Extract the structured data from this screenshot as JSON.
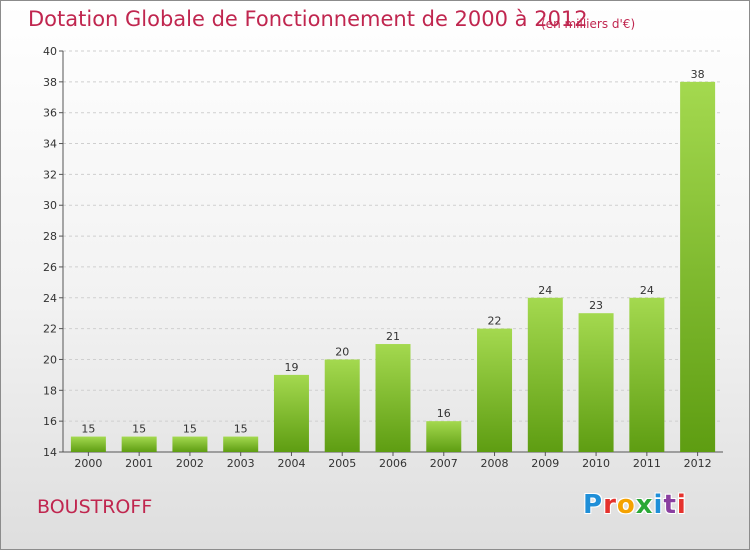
{
  "header": {
    "title": "Dotation Globale de Fonctionnement de 2000 à 2012",
    "subtitle": "(en milliers d'€)"
  },
  "footer": {
    "place": "BOUSTROFF",
    "logo": "Proxiti",
    "logo_colors": [
      "#1f8fd8",
      "#e5322d",
      "#f5a200",
      "#2aa836",
      "#1f8fd8",
      "#8a3fa0",
      "#e5322d"
    ]
  },
  "colors": {
    "title": "#c0264f",
    "bar_light": "#a4d94f",
    "bar_dark": "#5e9d12",
    "axis": "#555555",
    "grid": "#cfcfcf"
  },
  "chart_data": {
    "type": "bar",
    "title": "Dotation Globale de Fonctionnement de 2000 à 2012",
    "subtitle": "(en milliers d'€)",
    "categories": [
      "2000",
      "2001",
      "2002",
      "2003",
      "2004",
      "2005",
      "2006",
      "2007",
      "2008",
      "2009",
      "2010",
      "2011",
      "2012"
    ],
    "values": [
      15,
      15,
      15,
      15,
      19,
      20,
      21,
      16,
      22,
      24,
      23,
      24,
      38
    ],
    "data_labels": [
      "15",
      "15",
      "15",
      "15",
      "19",
      "20",
      "21",
      "16",
      "22",
      "24",
      "23",
      "24",
      "38"
    ],
    "ylim": [
      14,
      40
    ],
    "yticks": [
      14,
      16,
      18,
      20,
      22,
      24,
      26,
      28,
      30,
      32,
      34,
      36,
      38,
      40
    ],
    "grid": true,
    "legend": false
  }
}
